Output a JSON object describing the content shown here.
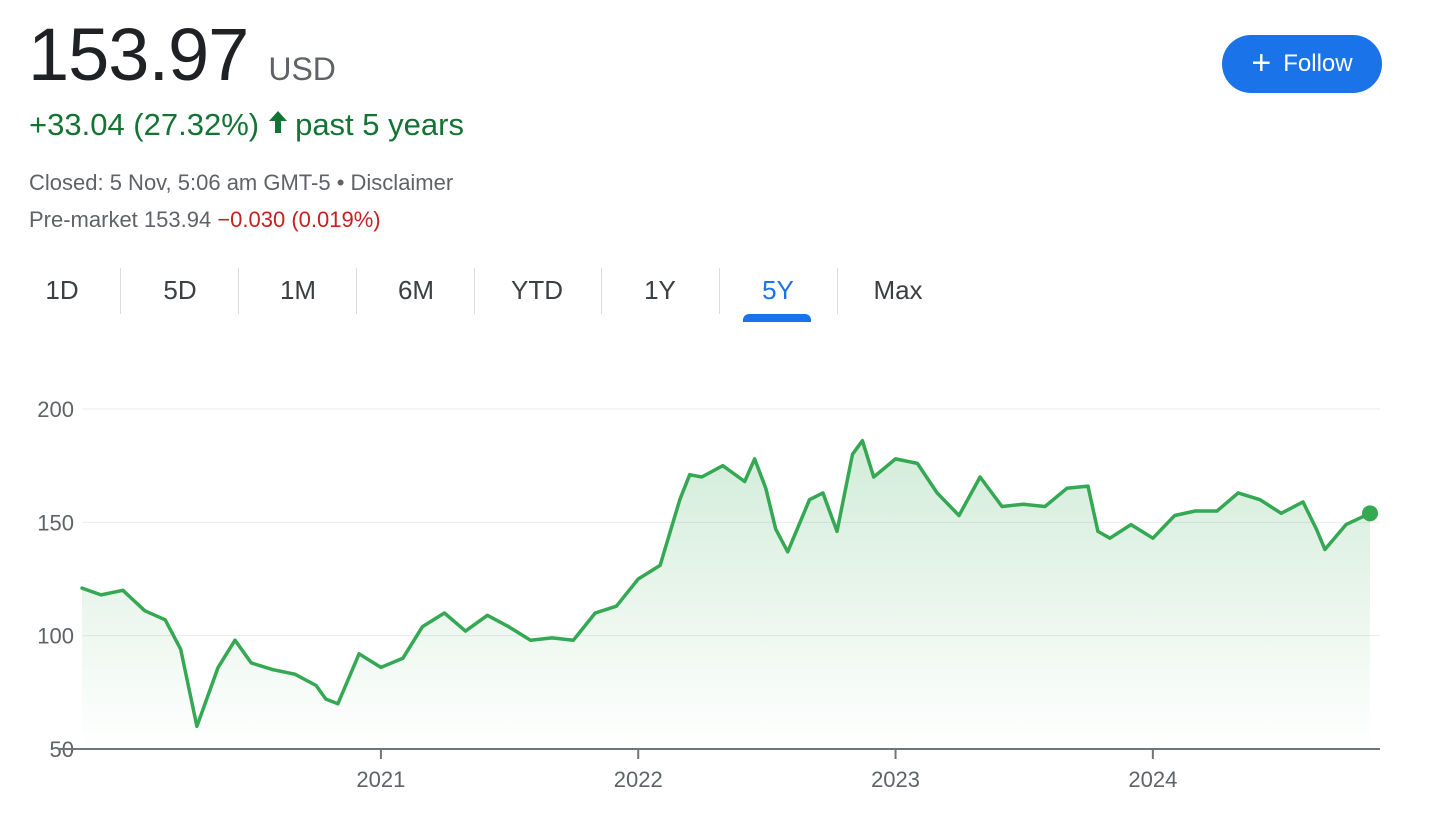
{
  "quote": {
    "price": "153.97",
    "currency": "USD",
    "change": "+33.04 (27.32%)",
    "period": "past 5 years",
    "closed": "Closed: 5 Nov, 5:06 am GMT-5 • Disclaimer",
    "premarket_label": "Pre-market 153.94",
    "premarket_change": "−0.030 (0.019%)",
    "colors": {
      "up": "#137333",
      "down": "#c5221f",
      "accent": "#1a73e8"
    }
  },
  "follow_label": "Follow",
  "tabs": [
    "1D",
    "5D",
    "1M",
    "6M",
    "YTD",
    "1Y",
    "5Y",
    "Max"
  ],
  "active_tab": "5Y",
  "chart_data": {
    "type": "area",
    "ylim": [
      50,
      200
    ],
    "yticks": [
      "200",
      "150",
      "100",
      "50"
    ],
    "xticks": [
      "2021",
      "2022",
      "2023",
      "2024"
    ],
    "x": [
      "2019-11-04",
      "2019-12-01",
      "2020-01-01",
      "2020-02-01",
      "2020-03-01",
      "2020-03-23",
      "2020-04-15",
      "2020-05-15",
      "2020-06-08",
      "2020-07-01",
      "2020-08-01",
      "2020-09-01",
      "2020-10-01",
      "2020-10-15",
      "2020-11-01",
      "2020-12-01",
      "2021-01-01",
      "2021-02-01",
      "2021-03-01",
      "2021-04-01",
      "2021-05-01",
      "2021-06-01",
      "2021-07-01",
      "2021-08-01",
      "2021-09-01",
      "2021-10-01",
      "2021-11-01",
      "2021-12-01",
      "2022-01-01",
      "2022-02-01",
      "2022-03-01",
      "2022-03-15",
      "2022-04-01",
      "2022-05-01",
      "2022-06-01",
      "2022-06-15",
      "2022-07-01",
      "2022-07-15",
      "2022-08-01",
      "2022-09-01",
      "2022-09-20",
      "2022-10-10",
      "2022-11-01",
      "2022-11-15",
      "2022-12-01",
      "2023-01-01",
      "2023-02-01",
      "2023-03-01",
      "2023-04-01",
      "2023-05-01",
      "2023-06-01",
      "2023-07-01",
      "2023-08-01",
      "2023-09-01",
      "2023-10-01",
      "2023-10-15",
      "2023-11-01",
      "2023-12-01",
      "2024-01-01",
      "2024-02-01",
      "2024-03-01",
      "2024-04-01",
      "2024-05-01",
      "2024-06-01",
      "2024-07-01",
      "2024-08-01",
      "2024-08-20",
      "2024-09-01",
      "2024-10-01",
      "2024-11-04"
    ],
    "values": [
      121,
      118,
      120,
      111,
      107,
      94,
      60,
      86,
      98,
      88,
      85,
      83,
      78,
      72,
      70,
      92,
      86,
      90,
      104,
      110,
      102,
      109,
      104,
      98,
      99,
      98,
      110,
      113,
      125,
      131,
      160,
      171,
      170,
      175,
      168,
      178,
      165,
      147,
      137,
      160,
      163,
      146,
      180,
      186,
      170,
      178,
      176,
      163,
      153,
      170,
      157,
      158,
      157,
      165,
      166,
      146,
      143,
      149,
      143,
      153,
      155,
      155,
      163,
      160,
      154,
      159,
      147,
      138,
      149,
      153.97
    ]
  }
}
